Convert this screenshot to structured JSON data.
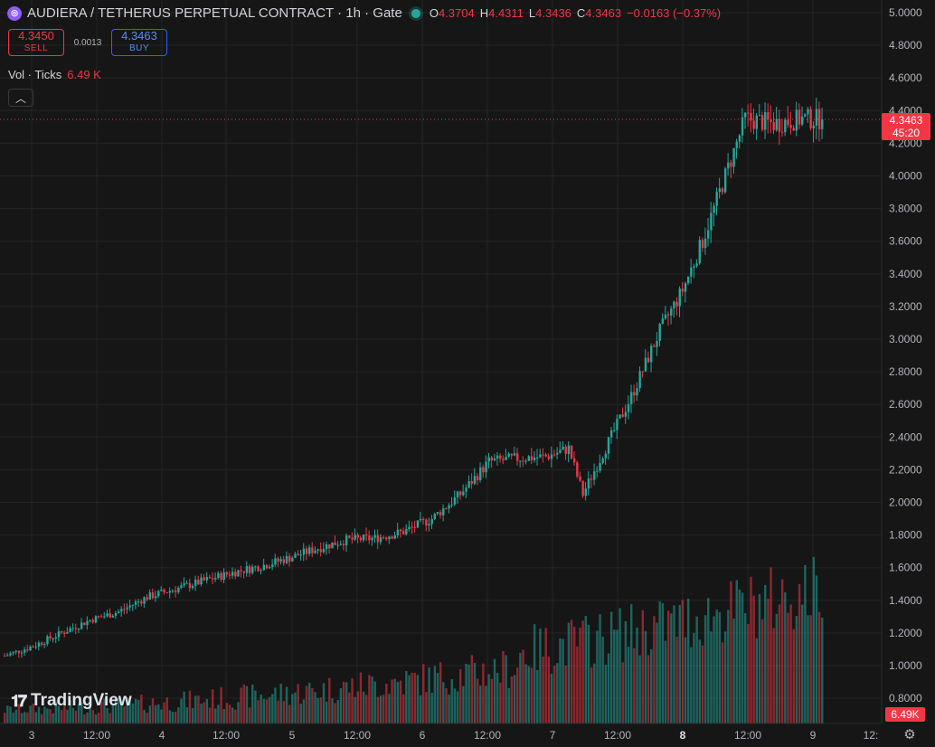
{
  "header": {
    "symbol_icon": "audiera-coin-icon",
    "title": "AUDIERA / TETHERUS PERPETUAL CONTRACT · 1h · Gate",
    "ohlc": {
      "o_label": "O",
      "o": "4.3704",
      "h_label": "H",
      "h": "4.4311",
      "l_label": "L",
      "l": "4.3436",
      "c_label": "C",
      "c": "4.3463",
      "change": "−0.0163 (−0.37%)"
    }
  },
  "trade": {
    "sell_price": "4.3450",
    "sell_label": "SELL",
    "spread": "0.0013",
    "buy_price": "4.3463",
    "buy_label": "BUY"
  },
  "volume_legend": {
    "label": "Vol · Ticks",
    "value": "6.49 K"
  },
  "price_axis": {
    "ticks": [
      "5.0000",
      "4.8000",
      "4.6000",
      "4.4000",
      "4.2000",
      "4.0000",
      "3.8000",
      "3.6000",
      "3.4000",
      "3.2000",
      "3.0000",
      "2.8000",
      "2.6000",
      "2.4000",
      "2.2000",
      "2.0000",
      "1.8000",
      "1.6000",
      "1.4000",
      "1.2000",
      "1.0000",
      "0.8000"
    ],
    "current_price": "4.3463",
    "countdown": "45:20",
    "volume_tag": "6.49K"
  },
  "time_axis": {
    "labels": [
      "3",
      "12:00",
      "4",
      "12:00",
      "5",
      "12:00",
      "6",
      "12:00",
      "7",
      "12:00",
      "8",
      "12:00",
      "9",
      "12:"
    ],
    "bold_label": "8"
  },
  "colors": {
    "up": "#26a69a",
    "down": "#f23645",
    "background": "#161616",
    "grid": "#242424"
  },
  "branding": {
    "logo_text": "TradingView",
    "logo_icon": "tradingview-logo-icon"
  },
  "icons": {
    "collapse": "chevron-up-icon",
    "settings": "gear-icon"
  },
  "chart_data": {
    "type": "candlestick",
    "interval": "1h",
    "ylim": [
      0.75,
      5.0
    ],
    "price_trend_knots": [
      [
        0,
        1.06
      ],
      [
        10,
        1.12
      ],
      [
        20,
        1.2
      ],
      [
        30,
        1.28
      ],
      [
        40,
        1.33
      ],
      [
        50,
        1.42
      ],
      [
        60,
        1.47
      ],
      [
        70,
        1.52
      ],
      [
        80,
        1.57
      ],
      [
        90,
        1.61
      ],
      [
        100,
        1.66
      ],
      [
        110,
        1.72
      ],
      [
        120,
        1.77
      ],
      [
        130,
        1.78
      ],
      [
        140,
        1.82
      ],
      [
        150,
        1.9
      ],
      [
        160,
        2.05
      ],
      [
        170,
        2.25
      ],
      [
        180,
        2.27
      ],
      [
        190,
        2.28
      ],
      [
        198,
        2.33
      ],
      [
        203,
        2.05
      ],
      [
        210,
        2.3
      ],
      [
        220,
        2.65
      ],
      [
        230,
        3.05
      ],
      [
        238,
        3.3
      ],
      [
        245,
        3.6
      ],
      [
        252,
        3.95
      ],
      [
        260,
        4.35
      ],
      [
        270,
        4.32
      ],
      [
        280,
        4.35
      ],
      [
        287,
        4.3463
      ]
    ],
    "volume_approx_k": [
      0.8,
      1.0,
      1.3,
      2.0,
      3.2,
      4.5,
      6.49
    ]
  }
}
